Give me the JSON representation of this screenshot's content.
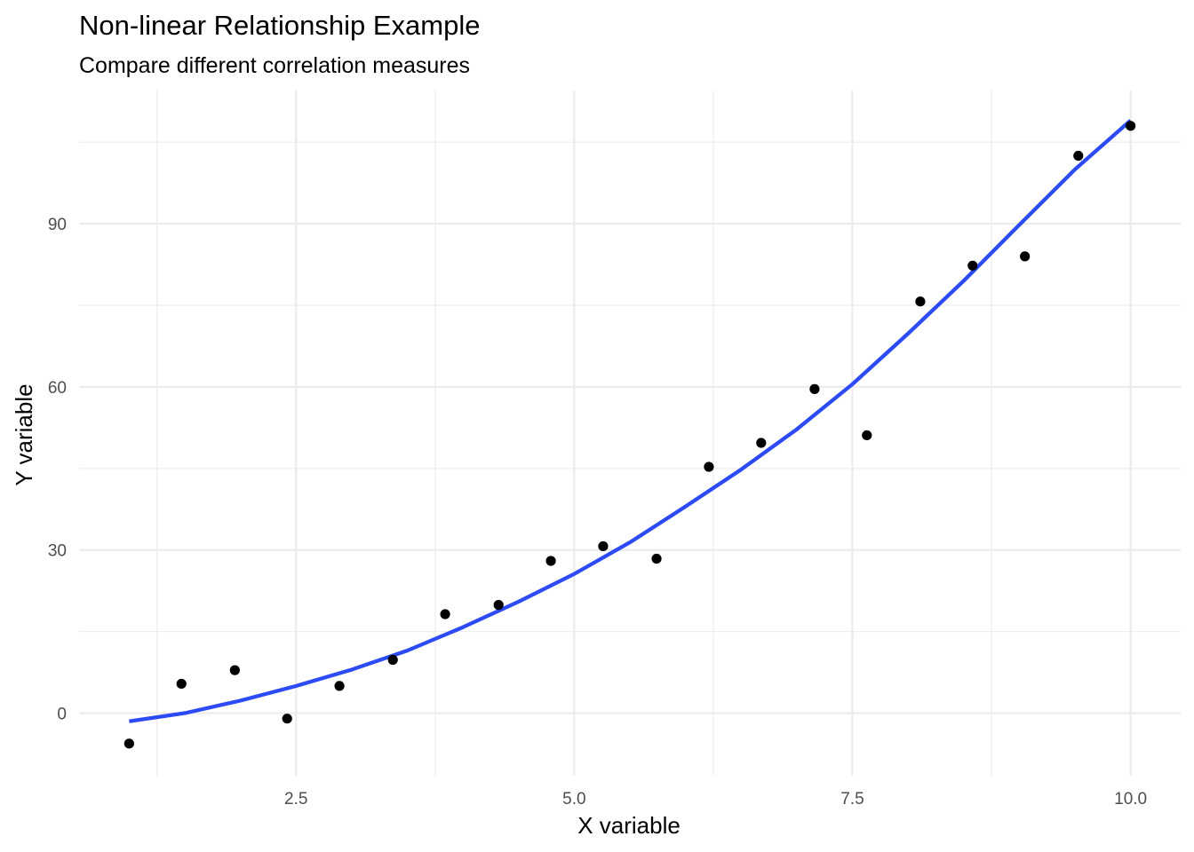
{
  "chart_data": {
    "type": "scatter",
    "title": "Non-linear Relationship Example",
    "subtitle": "Compare different correlation measures",
    "xlabel": "X variable",
    "ylabel": "Y variable",
    "xlim": [
      0.55,
      10.45
    ],
    "ylim": [
      -11.5,
      114.5
    ],
    "x_ticks": [
      2.5,
      5.0,
      7.5,
      10.0
    ],
    "x_tick_labels": [
      "2.5",
      "5.0",
      "7.5",
      "10.0"
    ],
    "y_ticks": [
      0,
      30,
      60,
      90
    ],
    "y_tick_labels": [
      "0",
      "30",
      "60",
      "90"
    ],
    "x_minor_ticks": [
      1.25,
      3.75,
      6.25,
      8.75
    ],
    "y_minor_ticks": [
      -15,
      15,
      45,
      75,
      105
    ],
    "grid": true,
    "point_color": "#000000",
    "line_color": "#2D4BF5",
    "points": [
      {
        "x": 1.0,
        "y": -5.6
      },
      {
        "x": 1.47,
        "y": 5.4
      },
      {
        "x": 1.95,
        "y": 7.9
      },
      {
        "x": 2.42,
        "y": -1.0
      },
      {
        "x": 2.89,
        "y": 5.0
      },
      {
        "x": 3.37,
        "y": 9.8
      },
      {
        "x": 3.84,
        "y": 18.2
      },
      {
        "x": 4.32,
        "y": 19.9
      },
      {
        "x": 4.79,
        "y": 28.0
      },
      {
        "x": 5.26,
        "y": 30.7
      },
      {
        "x": 5.74,
        "y": 28.4
      },
      {
        "x": 6.21,
        "y": 45.3
      },
      {
        "x": 6.68,
        "y": 49.7
      },
      {
        "x": 7.16,
        "y": 59.6
      },
      {
        "x": 7.63,
        "y": 51.1
      },
      {
        "x": 8.11,
        "y": 75.7
      },
      {
        "x": 8.58,
        "y": 82.3
      },
      {
        "x": 9.05,
        "y": 84.0
      },
      {
        "x": 9.53,
        "y": 102.5
      },
      {
        "x": 10.0,
        "y": 108.0
      }
    ],
    "fit_line": {
      "x": [
        1.0,
        1.5,
        2.0,
        2.5,
        3.0,
        3.5,
        4.0,
        4.5,
        5.0,
        5.5,
        6.0,
        6.5,
        7.0,
        7.5,
        8.0,
        8.5,
        9.0,
        9.5,
        10.0
      ],
      "y": [
        -1.5,
        0.0,
        2.3,
        5.0,
        8.0,
        11.5,
        15.8,
        20.5,
        25.6,
        31.4,
        38.0,
        44.8,
        52.2,
        60.5,
        69.8,
        79.5,
        89.8,
        100.0,
        109.0
      ]
    }
  }
}
